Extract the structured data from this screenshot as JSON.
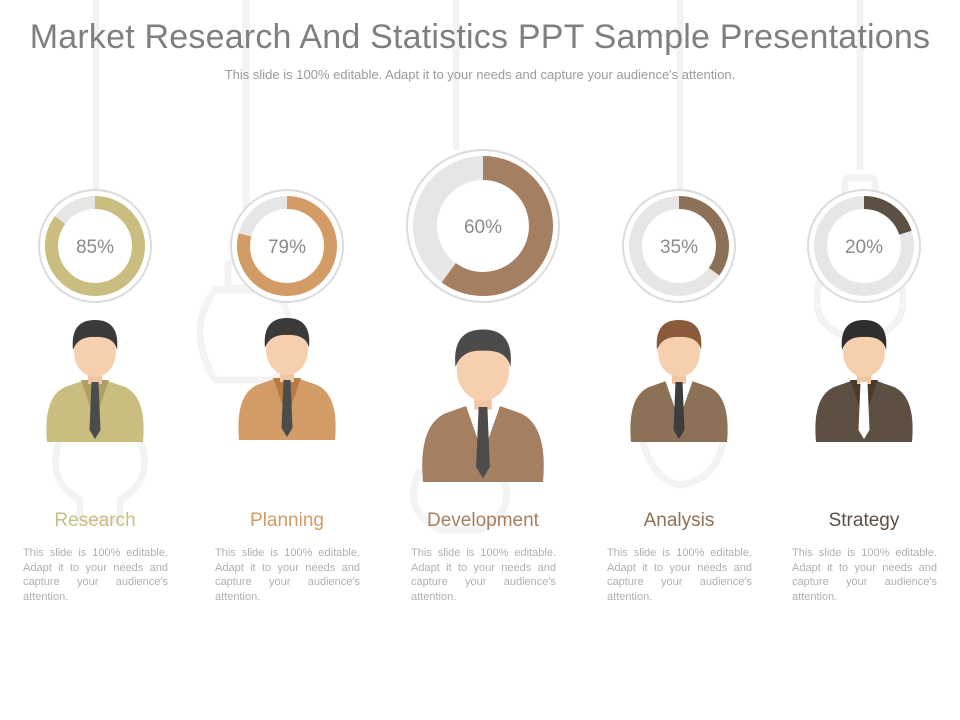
{
  "header": {
    "title": "Market Research And Statistics PPT Sample Presentations",
    "subtitle": "This slide is 100% editable. Adapt it to your needs and capture your audience's attention."
  },
  "chart_data": {
    "type": "pie",
    "variant": "donut",
    "items": [
      {
        "label": "Research",
        "value": 85,
        "value_label": "85%",
        "color": "#c9bd80",
        "description": "This slide is 100% editable. Adapt it to your needs and capture your audience's attention."
      },
      {
        "label": "Planning",
        "value": 79,
        "value_label": "79%",
        "color": "#d39b66",
        "description": "This slide is 100% editable. Adapt it to your needs and capture your audience's attention."
      },
      {
        "label": "Development",
        "value": 60,
        "value_label": "60%",
        "color": "#a57f62",
        "description": "This slide is 100% editable. Adapt it to your needs and capture your audience's attention."
      },
      {
        "label": "Analysis",
        "value": 35,
        "value_label": "35%",
        "color": "#8c7156",
        "description": "This slide is 100% editable. Adapt it to your needs and capture your audience's attention."
      },
      {
        "label": "Strategy",
        "value": 20,
        "value_label": "20%",
        "color": "#5e4f43",
        "description": "This slide is 100% editable. Adapt it to your needs and capture your audience's attention."
      }
    ],
    "remainder_color": "#e6e6e6"
  },
  "icons": [
    "businessman-icon",
    "lightbulb-icon"
  ]
}
